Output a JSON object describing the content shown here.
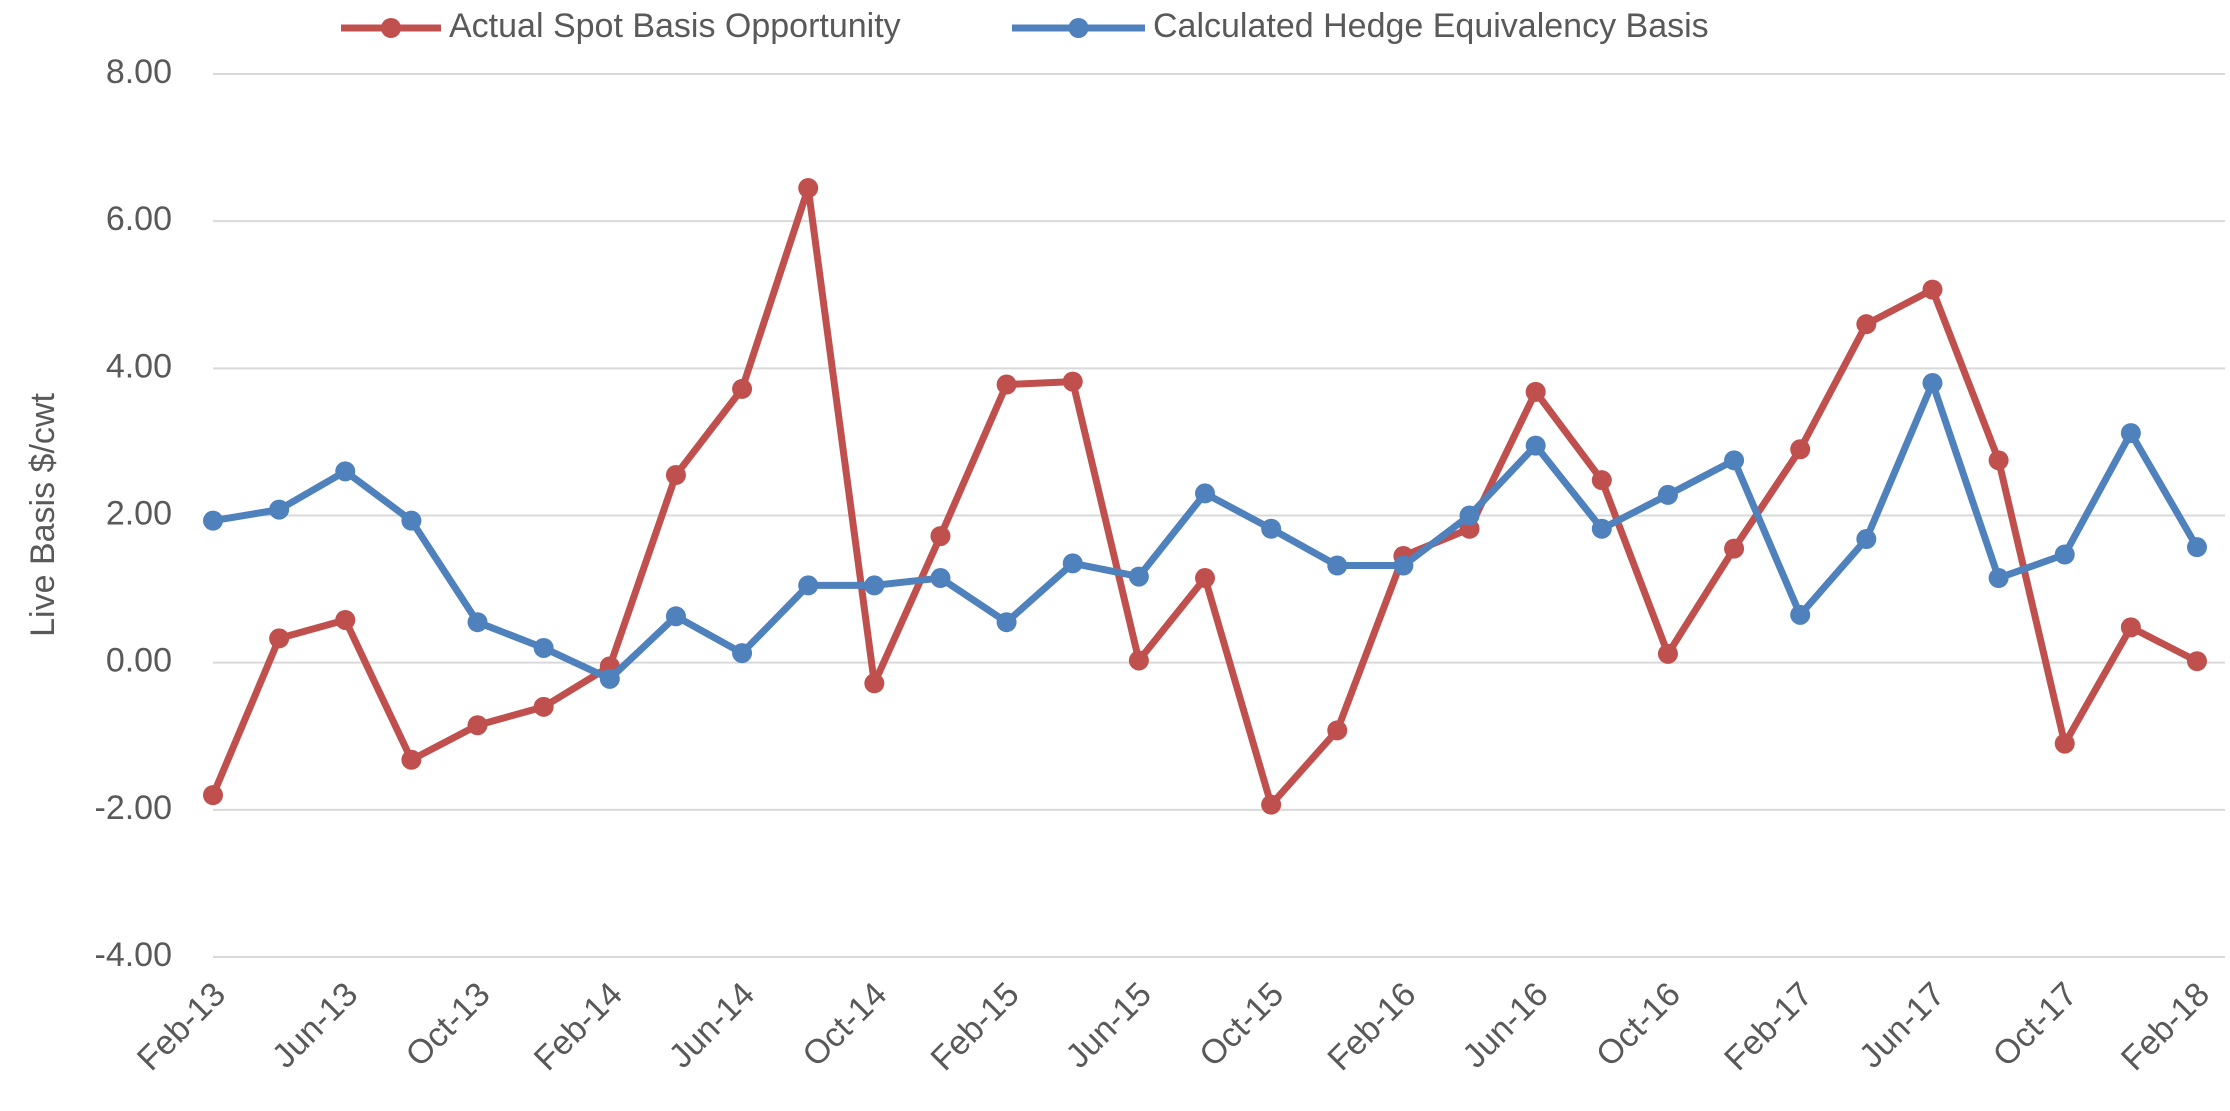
{
  "chart_data": {
    "type": "line",
    "y_label": "Live Basis $/cwt",
    "categories": [
      "Feb-13",
      null,
      "Jun-13",
      null,
      "Oct-13",
      null,
      "Feb-14",
      null,
      "Jun-14",
      null,
      "Oct-14",
      null,
      "Feb-15",
      null,
      "Jun-15",
      null,
      "Oct-15",
      null,
      "Feb-16",
      null,
      "Jun-16",
      null,
      "Oct-16",
      null,
      "Feb-17",
      null,
      "Jun-17",
      null,
      "Oct-17",
      null,
      "Feb-18"
    ],
    "series": [
      {
        "name": "Actual Spot Basis Opportunity",
        "color": "#c0504d",
        "values": [
          -1.8,
          0.33,
          0.58,
          -1.32,
          -0.85,
          -0.6,
          -0.05,
          2.55,
          3.72,
          6.45,
          -0.28,
          1.72,
          3.78,
          3.82,
          0.03,
          1.15,
          -1.93,
          -0.92,
          1.45,
          1.82,
          3.68,
          2.48,
          0.12,
          1.55,
          2.9,
          4.6,
          5.07,
          2.75,
          -1.1,
          0.48,
          0.02
        ]
      },
      {
        "name": "Calculated Hedge Equivalency Basis",
        "color": "#4f81bd",
        "values": [
          1.93,
          2.08,
          2.6,
          1.93,
          0.55,
          0.2,
          -0.22,
          0.63,
          0.13,
          1.05,
          1.05,
          1.15,
          0.55,
          1.35,
          1.17,
          2.3,
          1.82,
          1.32,
          1.32,
          2.0,
          2.95,
          1.82,
          2.28,
          2.75,
          0.65,
          1.68,
          3.8,
          1.15,
          1.47,
          3.12,
          1.57
        ]
      }
    ],
    "ylim": [
      -4,
      8
    ],
    "yticks": [
      {
        "value": -4,
        "label": "-4.00"
      },
      {
        "value": -2,
        "label": "-2.00"
      },
      {
        "value": 0,
        "label": "0.00"
      },
      {
        "value": 2,
        "label": "2.00"
      },
      {
        "value": 4,
        "label": "4.00"
      },
      {
        "value": 6,
        "label": "6.00"
      },
      {
        "value": 8,
        "label": "8.00"
      }
    ],
    "grid": true,
    "legend": "top"
  }
}
